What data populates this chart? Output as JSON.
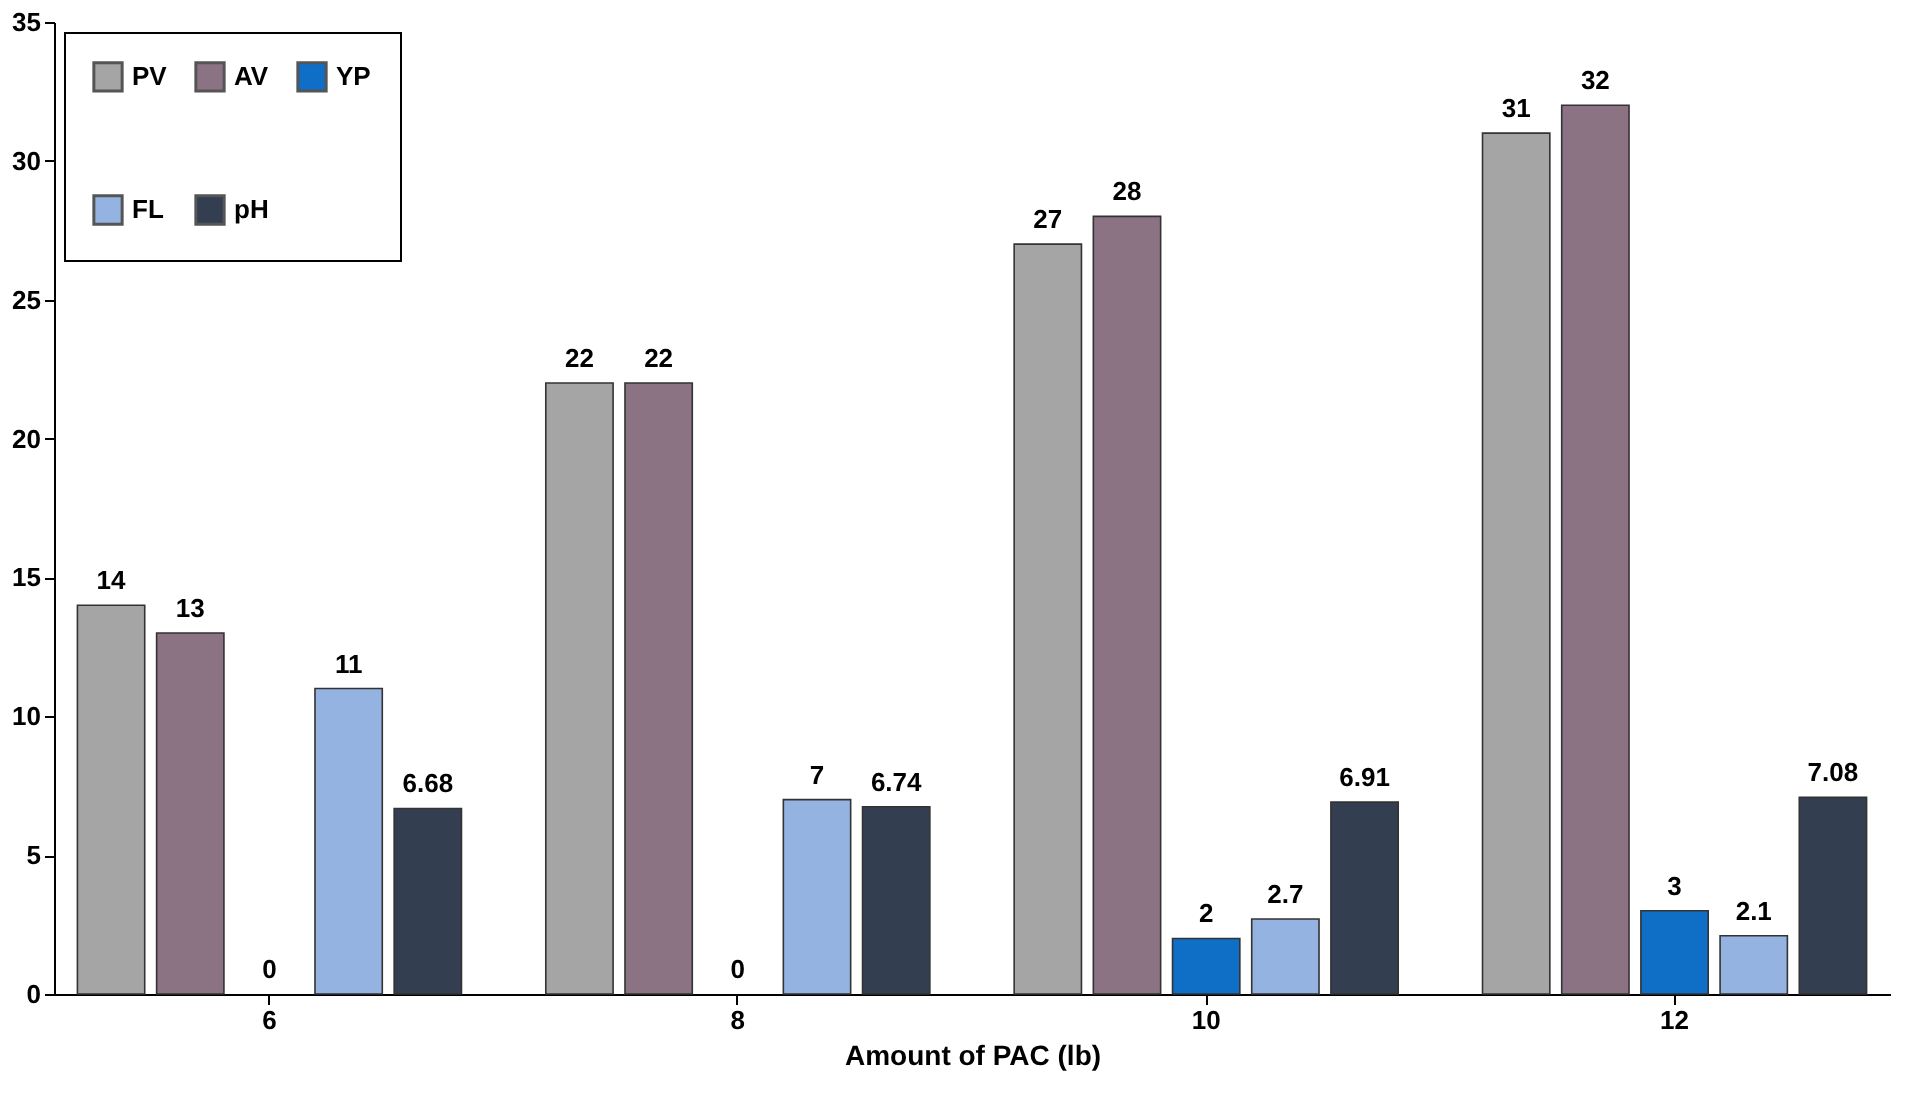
{
  "chart_data": {
    "type": "bar",
    "xlabel": "Amount of PAC (lb)",
    "categories": [
      "6",
      "8",
      "10",
      "12"
    ],
    "series": [
      {
        "name": "PV",
        "color": "#a5a5a5",
        "values": [
          14,
          22,
          27,
          31
        ]
      },
      {
        "name": "AV",
        "color": "#8b7384",
        "values": [
          13,
          22,
          28,
          32
        ]
      },
      {
        "name": "YP",
        "color": "#0f6fc6",
        "values": [
          0,
          0,
          2,
          3
        ]
      },
      {
        "name": "FL",
        "color": "#95b3e1",
        "values": [
          11,
          7,
          2.7,
          2.1
        ]
      },
      {
        "name": "pH",
        "color": "#333f50",
        "values": [
          6.68,
          6.74,
          6.91,
          7.08
        ]
      }
    ],
    "ylim": [
      0,
      35
    ],
    "yticks": [
      0,
      5,
      10,
      15,
      20,
      25,
      30,
      35
    ],
    "grid": false,
    "legend": "top left",
    "data_labels": true
  }
}
